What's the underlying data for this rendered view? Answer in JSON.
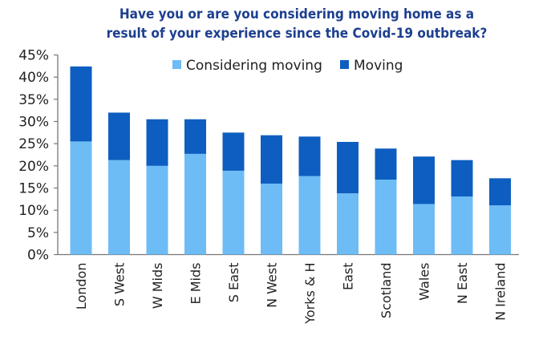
{
  "chart_data": {
    "type": "bar",
    "stacked": true,
    "title": "Have you or are you considering moving home as a result of your experience since the Covid-19 outbreak?",
    "title_lines": [
      "Have you or are you considering moving home as a",
      "result of your experience since the Covid-19 outbreak?"
    ],
    "xlabel": "",
    "ylabel": "",
    "ylim": [
      0,
      45
    ],
    "yticks": [
      "0%",
      "5%",
      "10%",
      "15%",
      "20%",
      "25%",
      "30%",
      "35%",
      "40%",
      "45%"
    ],
    "ytick_values": [
      0,
      5,
      10,
      15,
      20,
      25,
      30,
      35,
      40,
      45
    ],
    "grid": false,
    "legend_position": "top",
    "categories": [
      "London",
      "S West",
      "W Mids",
      "E Mids",
      "S East",
      "N West",
      "Yorks & H",
      "East",
      "Scotland",
      "Wales",
      "N East",
      "N Ireland"
    ],
    "series": [
      {
        "name": "Considering moving",
        "color": "#6dbcf5",
        "values": [
          25.5,
          21.3,
          20.0,
          22.7,
          18.9,
          16.0,
          17.7,
          13.8,
          16.9,
          11.4,
          13.1,
          11.1
        ]
      },
      {
        "name": "Moving",
        "color": "#0d5ec0",
        "values": [
          16.9,
          10.7,
          10.5,
          7.8,
          8.6,
          10.9,
          8.9,
          11.6,
          7.0,
          10.7,
          8.2,
          6.1
        ]
      }
    ]
  }
}
